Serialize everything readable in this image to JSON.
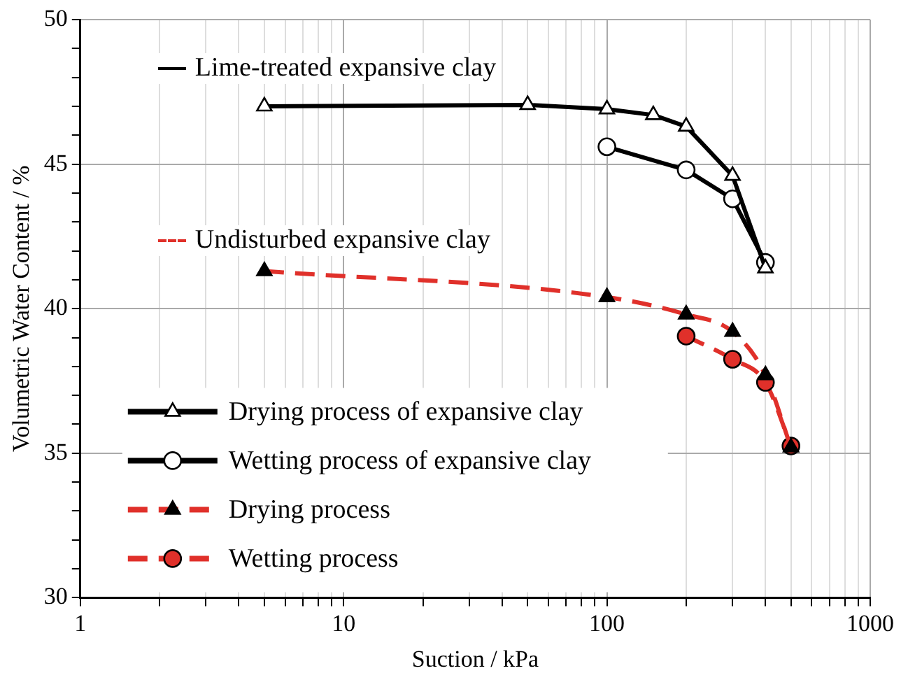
{
  "chart_data": {
    "type": "line",
    "xlabel": "Suction / kPa",
    "ylabel": "Volumetric Water Content / %",
    "log": "x",
    "grid": true,
    "legend": "bottom left",
    "xlim": [
      1,
      1000
    ],
    "xticks": [
      1,
      {
        "value": 2,
        "label": null
      },
      {
        "value": 3,
        "label": null
      },
      {
        "value": 4,
        "label": null
      },
      {
        "value": 5,
        "label": null
      },
      {
        "value": 6,
        "label": null
      },
      {
        "value": 7,
        "label": null
      },
      {
        "value": 8,
        "label": null
      },
      {
        "value": 9,
        "label": null
      },
      10,
      {
        "value": 20,
        "label": null
      },
      {
        "value": 30,
        "label": null
      },
      {
        "value": 40,
        "label": null
      },
      {
        "value": 50,
        "label": null
      },
      {
        "value": 60,
        "label": null
      },
      {
        "value": 70,
        "label": null
      },
      {
        "value": 80,
        "label": null
      },
      {
        "value": 90,
        "label": null
      },
      100,
      {
        "value": 200,
        "label": null
      },
      {
        "value": 300,
        "label": null
      },
      {
        "value": 400,
        "label": null
      },
      {
        "value": 500,
        "label": null
      },
      {
        "value": 600,
        "label": null
      },
      {
        "value": 700,
        "label": null
      },
      {
        "value": 800,
        "label": null
      },
      {
        "value": 900,
        "label": null
      },
      1000
    ],
    "ylim": [
      30,
      50
    ],
    "yticks": [
      30,
      {
        "value": 31,
        "label": null
      },
      {
        "value": 32,
        "label": null
      },
      {
        "value": 33,
        "label": null
      },
      {
        "value": 34,
        "label": null
      },
      35,
      {
        "value": 36,
        "label": null
      },
      {
        "value": 37,
        "label": null
      },
      {
        "value": 38,
        "label": null
      },
      {
        "value": 39,
        "label": null
      },
      40,
      {
        "value": 41,
        "label": null
      },
      {
        "value": 42,
        "label": null
      },
      {
        "value": 43,
        "label": null
      },
      {
        "value": 44,
        "label": null
      },
      45,
      {
        "value": 46,
        "label": null
      },
      {
        "value": 47,
        "label": null
      },
      {
        "value": 48,
        "label": null
      },
      {
        "value": 49,
        "label": null
      },
      50
    ],
    "annotations": [
      "Lime-treated expansive clay",
      "Undisturbed expansive clay"
    ],
    "series": [
      {
        "name": "Drying process of expansive clay",
        "color": "#000000",
        "marker": "triangle",
        "line_style": "solid",
        "x": [
          5,
          50,
          100,
          150,
          200,
          300,
          400
        ],
        "values": [
          47.0,
          47.05,
          46.9,
          46.7,
          46.3,
          44.6,
          41.4
        ]
      },
      {
        "name": "Wetting process of expansive clay",
        "color": "#000000",
        "marker": "circle",
        "line_style": "solid",
        "x": [
          100,
          200,
          300,
          400
        ],
        "values": [
          45.6,
          44.8,
          43.8,
          41.6
        ]
      },
      {
        "name": "Drying process",
        "color": "#e0302a",
        "marker": "triangle",
        "line_style": "dashed",
        "x": [
          5,
          100,
          200,
          300,
          400,
          500
        ],
        "values": [
          41.3,
          40.4,
          39.8,
          39.2,
          37.7,
          35.2
        ]
      },
      {
        "name": "Wetting process",
        "color": "#e0302a",
        "marker": "circle",
        "line_style": "dashed",
        "x": [
          200,
          300,
          400,
          500
        ],
        "values": [
          39.05,
          38.25,
          37.45,
          35.25
        ]
      }
    ]
  }
}
